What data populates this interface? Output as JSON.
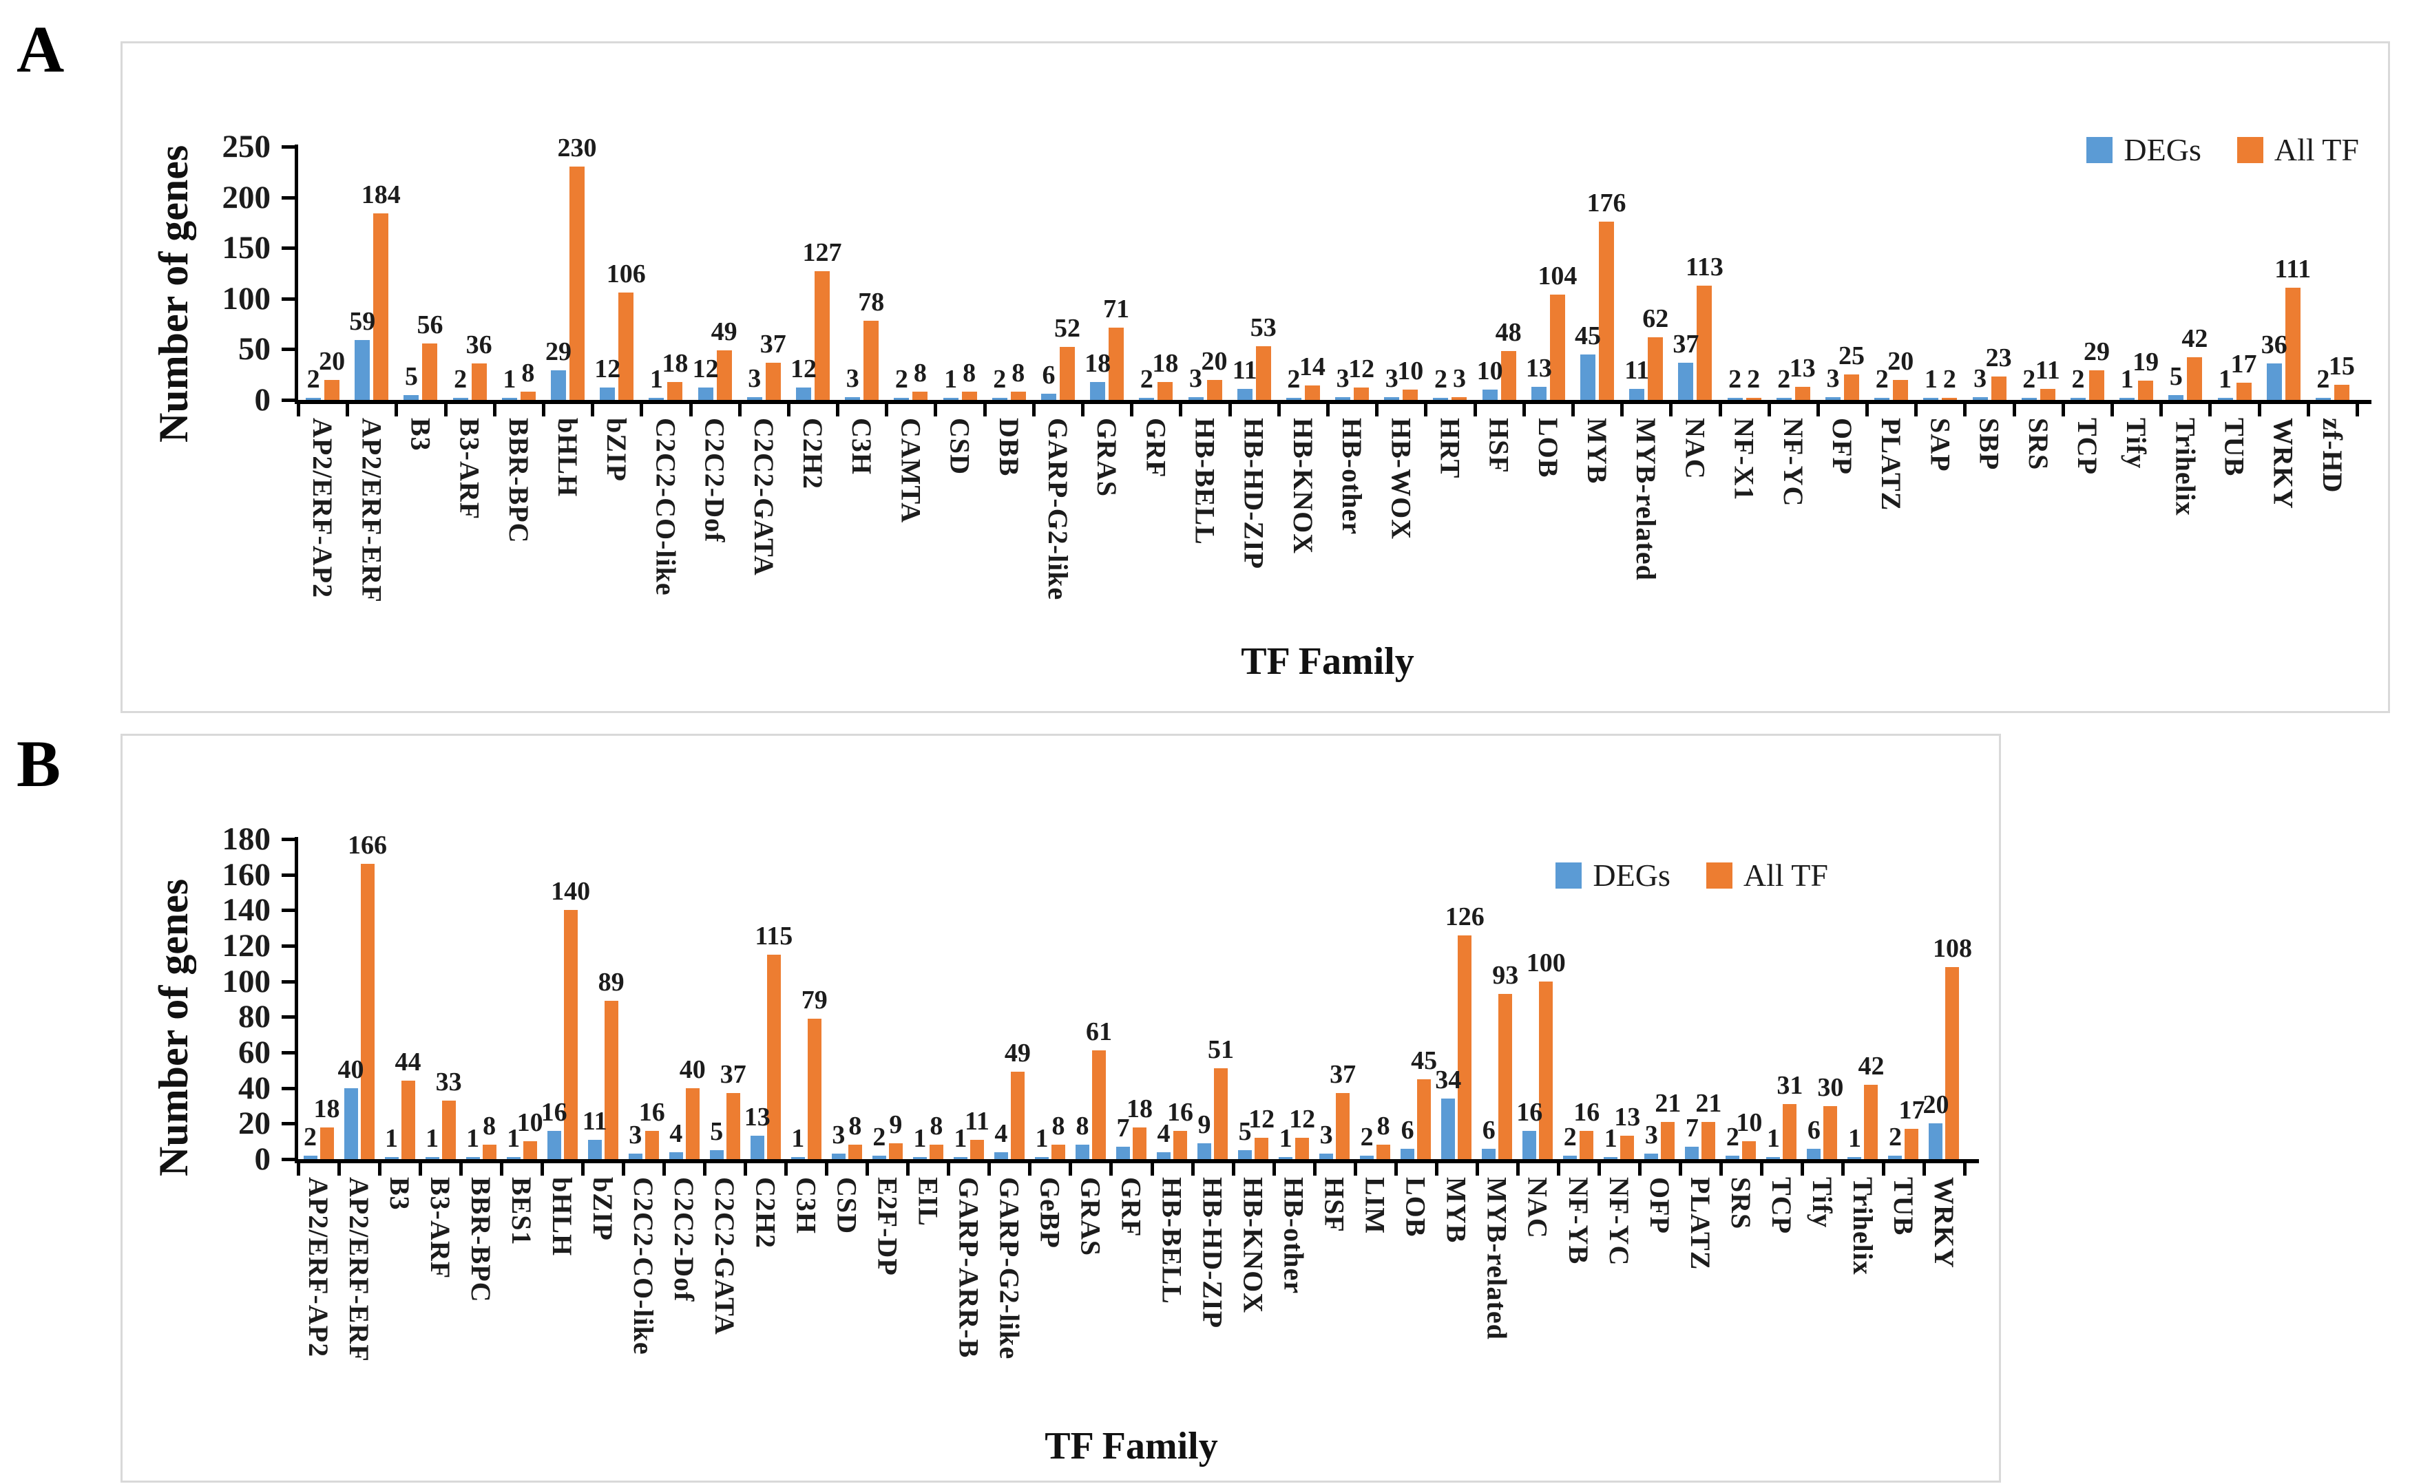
{
  "panel_letters": {
    "a": "A",
    "b": "B"
  },
  "colors": {
    "degs": "#5B9BD5",
    "all_tf": "#ED7D31",
    "axis": "#000000",
    "text": "#1c1c1c",
    "panel_border": "#d9d9d9"
  },
  "chart_data": [
    {
      "panel": "A",
      "type": "bar",
      "title": "",
      "xlabel": "TF Family",
      "ylabel": "Number of genes",
      "ylim": [
        0,
        250
      ],
      "yticks": [
        0,
        50,
        100,
        150,
        200,
        250
      ],
      "grid": false,
      "legend_position": "top-right",
      "legend": [
        "DEGs",
        "All TF"
      ],
      "categories": [
        "AP2/ERF-AP2",
        "AP2/ERF-ERF",
        "B3",
        "B3-ARF",
        "BBR-BPC",
        "bHLH",
        "bZIP",
        "C2C2-CO-like",
        "C2C2-Dof",
        "C2C2-GATA",
        "C2H2",
        "C3H",
        "CAMTA",
        "CSD",
        "DBB",
        "GARP-G2-like",
        "GRAS",
        "GRF",
        "HB-BELL",
        "HB-HD-ZIP",
        "HB-KNOX",
        "HB-other",
        "HB-WOX",
        "HRT",
        "HSF",
        "LOB",
        "MYB",
        "MYB-related",
        "NAC",
        "NF-X1",
        "NF-YC",
        "OFP",
        "PLATZ",
        "SAP",
        "SBP",
        "SRS",
        "TCP",
        "Tify",
        "Trihelix",
        "TUB",
        "WRKY",
        "zf-HD"
      ],
      "series": [
        {
          "name": "DEGs",
          "color": "#5B9BD5",
          "values": [
            2,
            59,
            5,
            2,
            1,
            29,
            12,
            1,
            12,
            3,
            12,
            3,
            2,
            1,
            2,
            6,
            18,
            2,
            3,
            11,
            2,
            3,
            3,
            2,
            10,
            13,
            45,
            11,
            37,
            2,
            2,
            3,
            2,
            1,
            3,
            2,
            2,
            1,
            5,
            1,
            36,
            2
          ]
        },
        {
          "name": "All TF",
          "color": "#ED7D31",
          "values": [
            20,
            184,
            56,
            36,
            8,
            230,
            106,
            18,
            49,
            37,
            127,
            78,
            8,
            8,
            8,
            52,
            71,
            18,
            20,
            53,
            14,
            12,
            10,
            3,
            48,
            104,
            176,
            62,
            113,
            2,
            13,
            25,
            20,
            2,
            23,
            11,
            29,
            19,
            42,
            17,
            111,
            15
          ]
        }
      ]
    },
    {
      "panel": "B",
      "type": "bar",
      "title": "",
      "xlabel": "TF Family",
      "ylabel": "Number of genes",
      "ylim": [
        0,
        180
      ],
      "yticks": [
        0,
        20,
        40,
        60,
        80,
        100,
        120,
        140,
        160,
        180
      ],
      "grid": false,
      "legend_position": "top-right",
      "legend": [
        "DEGs",
        "All TF"
      ],
      "categories": [
        "AP2/ERF-AP2",
        "AP2/ERF-ERF",
        "B3",
        "B3-ARF",
        "BBR-BPC",
        "BES1",
        "bHLH",
        "bZIP",
        "C2C2-CO-like",
        "C2C2-Dof",
        "C2C2-GATA",
        "C2H2",
        "C3H",
        "CSD",
        "E2F-DP",
        "EIL",
        "GARP-ARR-B",
        "GARP-G2-like",
        "GeBP",
        "GRAS",
        "GRF",
        "HB-BELL",
        "HB-HD-ZIP",
        "HB-KNOX",
        "HB-other",
        "HSF",
        "LIM",
        "LOB",
        "MYB",
        "MYB-related",
        "NAC",
        "NF-YB",
        "NF-YC",
        "OFP",
        "PLATZ",
        "SRS",
        "TCP",
        "Tify",
        "Trihelix",
        "TUB",
        "WRKY"
      ],
      "series": [
        {
          "name": "DEGs",
          "color": "#5B9BD5",
          "values": [
            2,
            40,
            1,
            1,
            1,
            1,
            16,
            11,
            3,
            4,
            5,
            13,
            1,
            3,
            2,
            1,
            1,
            4,
            1,
            8,
            7,
            4,
            9,
            5,
            1,
            3,
            2,
            6,
            34,
            6,
            16,
            2,
            1,
            3,
            7,
            2,
            1,
            6,
            1,
            2,
            20
          ]
        },
        {
          "name": "All TF",
          "color": "#ED7D31",
          "values": [
            18,
            166,
            44,
            33,
            8,
            10,
            140,
            89,
            16,
            40,
            37,
            115,
            79,
            8,
            9,
            8,
            11,
            49,
            8,
            61,
            18,
            16,
            51,
            12,
            12,
            37,
            8,
            45,
            126,
            93,
            100,
            16,
            13,
            21,
            21,
            10,
            31,
            30,
            42,
            17,
            108
          ]
        }
      ]
    }
  ]
}
